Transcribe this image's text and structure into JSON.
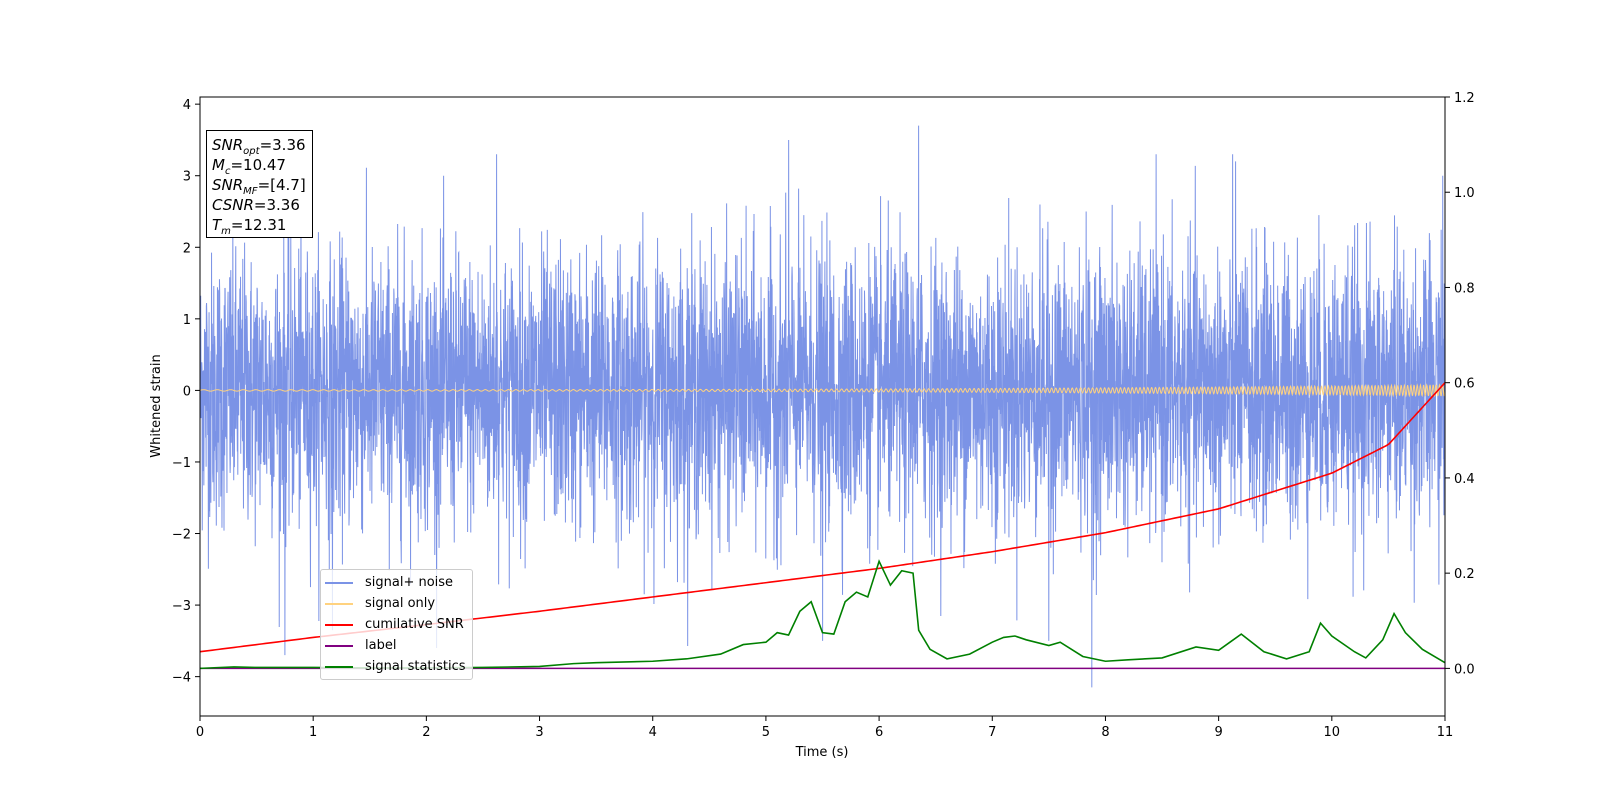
{
  "info_box": {
    "snr_opt": {
      "label_main": "SNR",
      "label_sub": "opt",
      "value": "=3.36"
    },
    "mc": {
      "label_main": "M",
      "label_sub": "c",
      "value": "=10.47"
    },
    "snr_mf": {
      "label_main": "SNR",
      "label_sub": "MF",
      "value": "=[4.7]"
    },
    "csnr": {
      "label_main": "CSNR",
      "value": "=3.36"
    },
    "tm": {
      "label_main": "T",
      "label_sub": "m",
      "value": "=12.31"
    }
  },
  "legend": {
    "items": [
      {
        "key": "signal_noise",
        "label": "signal+ noise",
        "color": "#7b93e6"
      },
      {
        "key": "signal_only",
        "label": "signal only",
        "color": "#ffd27f"
      },
      {
        "key": "cumulative_snr",
        "label": "cumilative SNR",
        "color": "#ff0000"
      },
      {
        "key": "label",
        "label": "label",
        "color": "#800080"
      },
      {
        "key": "signal_statistics",
        "label": "signal statistics",
        "color": "#008000"
      }
    ]
  },
  "chart_data": {
    "type": "line",
    "title": "",
    "xlabel": "Time (s)",
    "ylabel": "Whitened strain",
    "xlim": [
      0,
      11
    ],
    "ylim": [
      -4.55,
      4.1
    ],
    "y2lim": [
      -0.1,
      1.2
    ],
    "xticks": [
      "0",
      "1",
      "2",
      "3",
      "4",
      "5",
      "6",
      "7",
      "8",
      "9",
      "10",
      "11"
    ],
    "yticks": [
      "4",
      "3",
      "2",
      "1",
      "0",
      "−1",
      "−2",
      "−3",
      "−4"
    ],
    "y2ticks": [
      "1.2",
      "1.0",
      "0.8",
      "0.6",
      "0.4",
      "0.2",
      "0.0"
    ],
    "grid": false,
    "legend_position": "lower-left",
    "series": [
      {
        "name": "signal+ noise",
        "axis": "left",
        "color": "#7b93e6",
        "description_stats": {
          "mean": 0,
          "std": 0.95,
          "min": -4.15,
          "max": 3.7
        },
        "peaks": [
          {
            "x": 0.75,
            "y": -3.7
          },
          {
            "x": 1.17,
            "y": -3.35
          },
          {
            "x": 2.62,
            "y": 3.3
          },
          {
            "x": 5.2,
            "y": 3.5
          },
          {
            "x": 5.5,
            "y": -3.5
          },
          {
            "x": 6.35,
            "y": 3.7
          },
          {
            "x": 7.5,
            "y": -3.5
          },
          {
            "x": 7.88,
            "y": -4.15
          },
          {
            "x": 9.15,
            "y": 3.2
          },
          {
            "x": 10.98,
            "y": 3.0
          }
        ]
      },
      {
        "name": "signal only",
        "axis": "left",
        "color": "#ffd27f",
        "description_stats": {
          "amplitude_start": 0.01,
          "amplitude_end": 0.08
        }
      },
      {
        "name": "cumilative SNR",
        "axis": "right",
        "color": "#ff0000",
        "x": [
          0,
          1,
          2,
          3,
          4,
          5,
          6,
          7,
          8,
          9,
          10,
          10.5,
          11
        ],
        "y": [
          0.035,
          0.065,
          0.092,
          0.12,
          0.15,
          0.18,
          0.21,
          0.245,
          0.285,
          0.335,
          0.41,
          0.47,
          0.6
        ]
      },
      {
        "name": "label",
        "axis": "right",
        "color": "#800080",
        "x": [
          0,
          11
        ],
        "y": [
          0,
          0
        ]
      },
      {
        "name": "signal statistics",
        "axis": "right",
        "color": "#008000",
        "x": [
          0,
          0.3,
          0.5,
          1.0,
          1.5,
          2.0,
          2.5,
          3.0,
          3.3,
          3.5,
          4.0,
          4.3,
          4.6,
          4.8,
          5.0,
          5.1,
          5.2,
          5.3,
          5.4,
          5.5,
          5.6,
          5.7,
          5.8,
          5.9,
          6.0,
          6.1,
          6.2,
          6.3,
          6.35,
          6.45,
          6.6,
          6.8,
          7.0,
          7.1,
          7.2,
          7.3,
          7.5,
          7.6,
          7.8,
          8.0,
          8.2,
          8.5,
          8.8,
          9.0,
          9.1,
          9.2,
          9.4,
          9.6,
          9.8,
          9.9,
          10.0,
          10.2,
          10.3,
          10.45,
          10.55,
          10.65,
          10.8,
          11.0
        ],
        "y": [
          0.0,
          0.003,
          0.002,
          0.002,
          0.001,
          0.001,
          0.002,
          0.004,
          0.01,
          0.012,
          0.015,
          0.02,
          0.03,
          0.05,
          0.055,
          0.075,
          0.07,
          0.12,
          0.14,
          0.075,
          0.072,
          0.14,
          0.16,
          0.15,
          0.225,
          0.175,
          0.205,
          0.2,
          0.08,
          0.04,
          0.02,
          0.03,
          0.055,
          0.065,
          0.068,
          0.06,
          0.048,
          0.055,
          0.025,
          0.015,
          0.018,
          0.022,
          0.045,
          0.038,
          0.055,
          0.072,
          0.035,
          0.02,
          0.035,
          0.095,
          0.068,
          0.035,
          0.022,
          0.06,
          0.115,
          0.075,
          0.04,
          0.012
        ]
      }
    ]
  }
}
